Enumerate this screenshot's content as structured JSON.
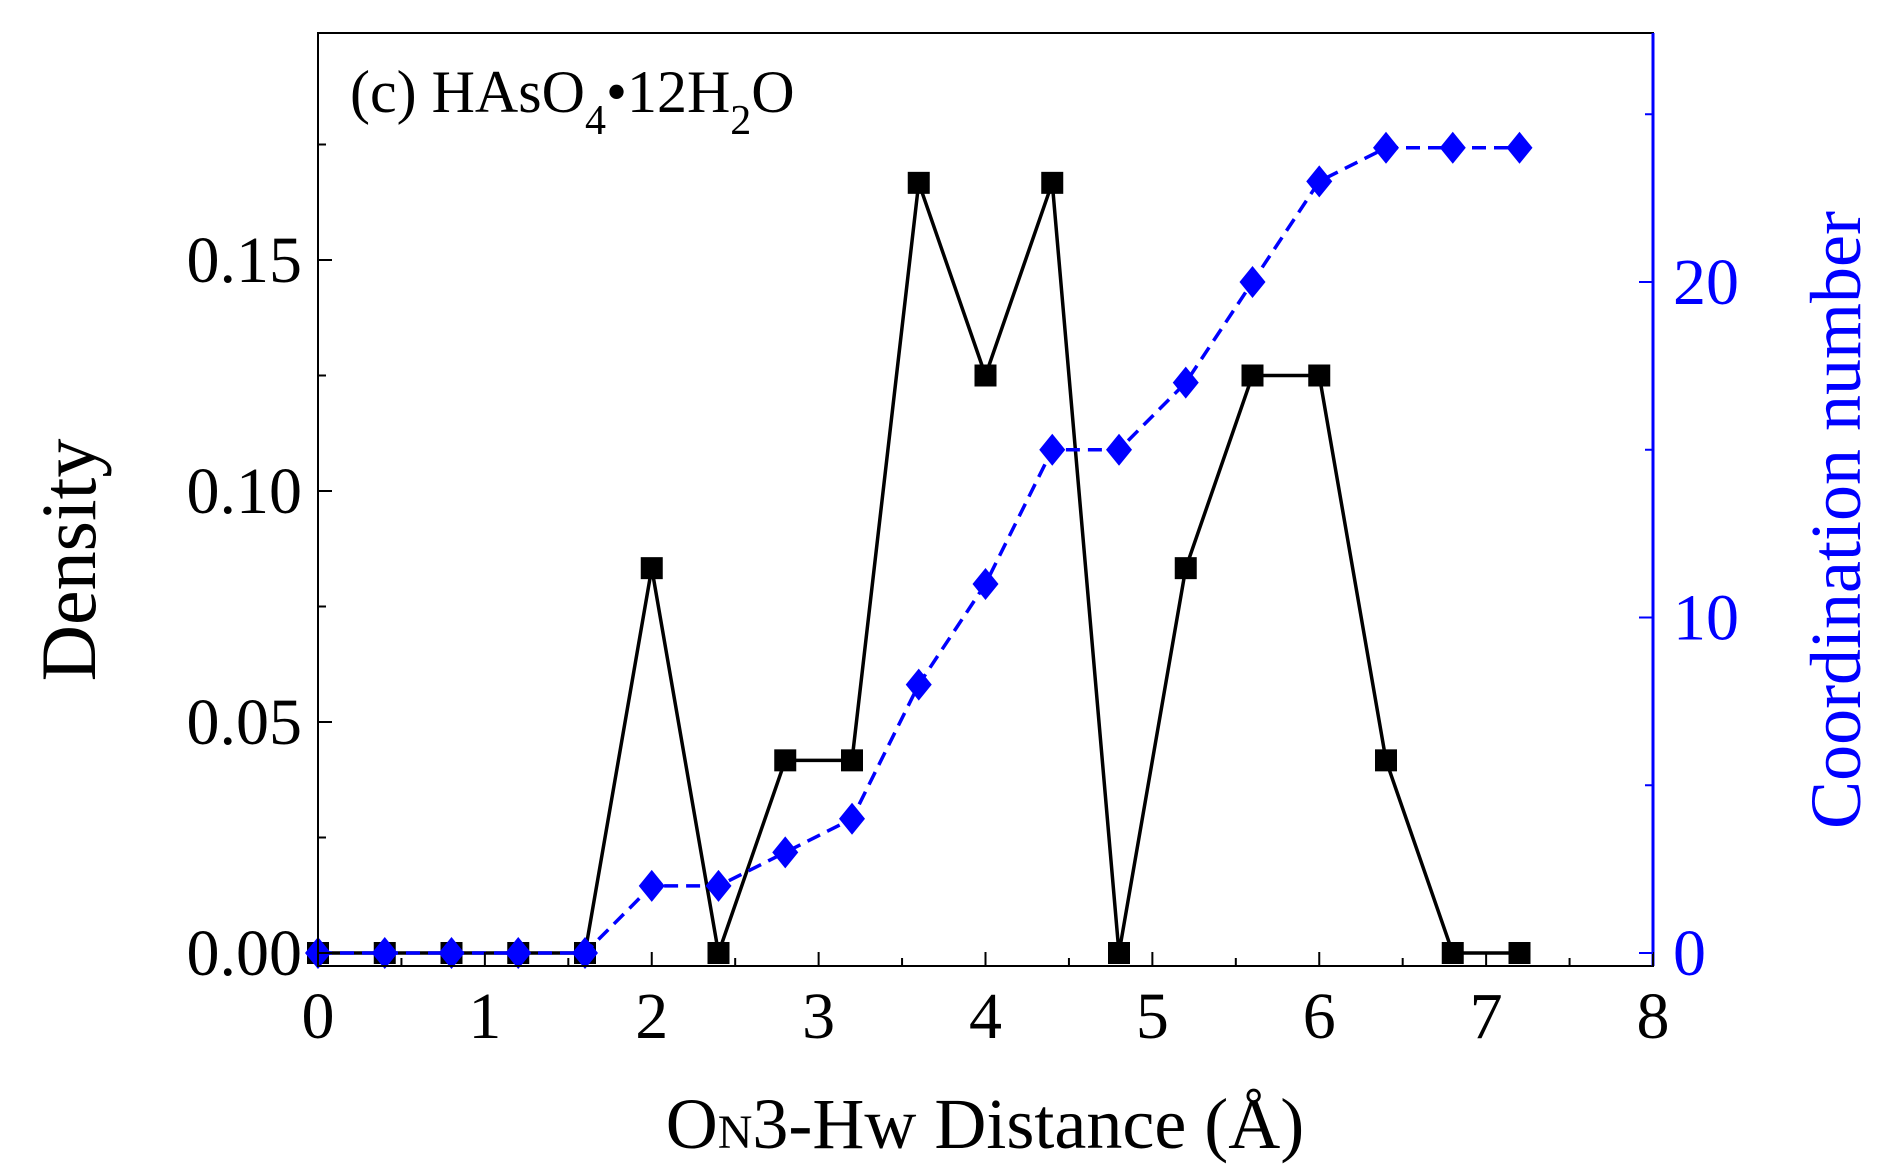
{
  "chart_data": {
    "type": "line",
    "annotation": {
      "prefix": "(c) HAsO",
      "sub1": "4",
      "mid": "•12H",
      "sub2": "2",
      "suffix": "O"
    },
    "xlabel": "ON3-Hw Distance (Å)",
    "xlabel_parts": {
      "a": "O",
      "b": "N",
      "c": "3-Hw Distance (Å)"
    },
    "ylabel": "Density",
    "y2label": "Coordination number",
    "xlim": [
      0,
      8
    ],
    "ylim": [
      0,
      0.19
    ],
    "y2lim": [
      0,
      27.4
    ],
    "xticks": [
      "0",
      "1",
      "2",
      "3",
      "4",
      "5",
      "6",
      "7",
      "8"
    ],
    "yticks": [
      "0.00",
      "0.05",
      "0.10",
      "0.15"
    ],
    "y2ticks": [
      "0",
      "10",
      "20"
    ],
    "grid": false,
    "x": [
      0,
      0.4,
      0.8,
      1.2,
      1.6,
      2.0,
      2.4,
      2.8,
      3.2,
      3.6,
      4.0,
      4.4,
      4.8,
      5.2,
      5.6,
      6.0,
      6.4,
      6.8,
      7.2
    ],
    "series": [
      {
        "axis": "left",
        "color": "#000000",
        "marker": "square",
        "line": "solid",
        "values": [
          0,
          0,
          0,
          0,
          0,
          0.0833,
          0,
          0.0417,
          0.0417,
          0.1667,
          0.125,
          0.1667,
          0,
          0.0833,
          0.125,
          0.125,
          0.0417,
          0,
          0
        ]
      },
      {
        "axis": "right",
        "color": "#0000ff",
        "marker": "diamond",
        "line": "dashed",
        "values": [
          0,
          0,
          0,
          0,
          0,
          2,
          2,
          3,
          4,
          8,
          11,
          15,
          15,
          17,
          20,
          23,
          24,
          24,
          24
        ]
      }
    ]
  }
}
